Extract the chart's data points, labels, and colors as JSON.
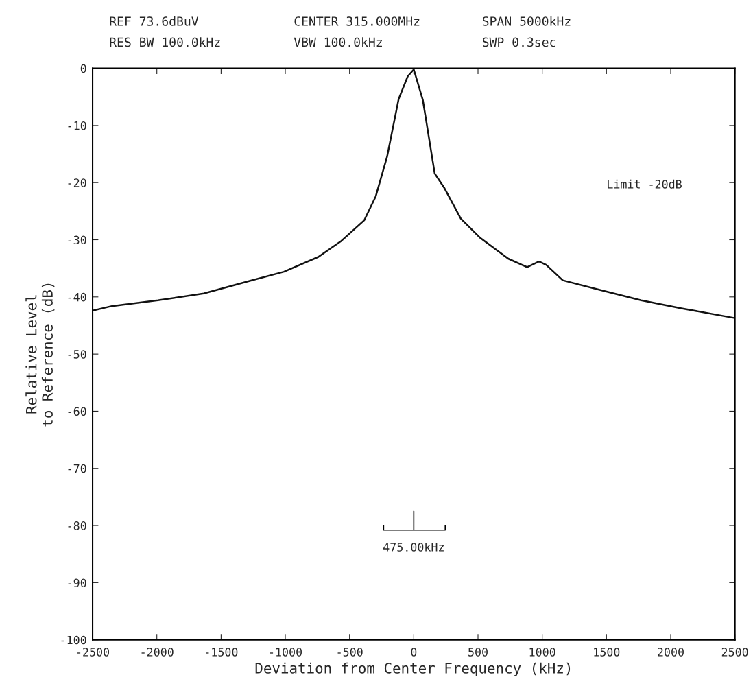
{
  "chart_data": {
    "type": "line",
    "xlabel": "Deviation from Center Frequency (kHz)",
    "ylabel": "Relative Level\nto Reference (dB)",
    "x": [
      -2500,
      -2350,
      -1992,
      -1635,
      -1278,
      -1011,
      -743,
      -564,
      -386,
      -296,
      -207,
      -118,
      -47,
      0,
      71,
      163,
      237,
      366,
      514,
      735,
      883,
      975,
      1031,
      1160,
      1437,
      1770,
      2084,
      2500
    ],
    "series": [
      {
        "color": "#111111",
        "values": [
          -42.4,
          -41.6,
          -40.6,
          -39.4,
          -37.2,
          -35.6,
          -33.0,
          -30.2,
          -26.6,
          -22.4,
          -15.4,
          -5.4,
          -1.4,
          -0.2,
          -5.6,
          -18.4,
          -20.9,
          -26.3,
          -29.6,
          -33.3,
          -34.8,
          -33.8,
          -34.4,
          -37.1,
          -38.7,
          -40.6,
          -42.0,
          -43.7
        ]
      }
    ],
    "xlim": [
      -2500,
      2500
    ],
    "ylim": [
      -100,
      0
    ],
    "xticks": [
      -2500,
      -2000,
      -1500,
      -1000,
      -500,
      0,
      500,
      1000,
      1500,
      2000,
      2500
    ],
    "yticks": [
      -100,
      -90,
      -80,
      -70,
      -60,
      -50,
      -40,
      -30,
      -20,
      -10,
      0
    ],
    "grid": false,
    "legend": false,
    "marker": "none",
    "line_style": "solid",
    "annotations": [
      "REF 73.6dBuV",
      "CENTER 315.000MHz",
      "SPAN 5000kHz",
      "RES BW 100.0kHz",
      "VBW 100.0kHz",
      "SWP 0.3sec",
      "Limit -20dB",
      "475.00kHz"
    ]
  }
}
